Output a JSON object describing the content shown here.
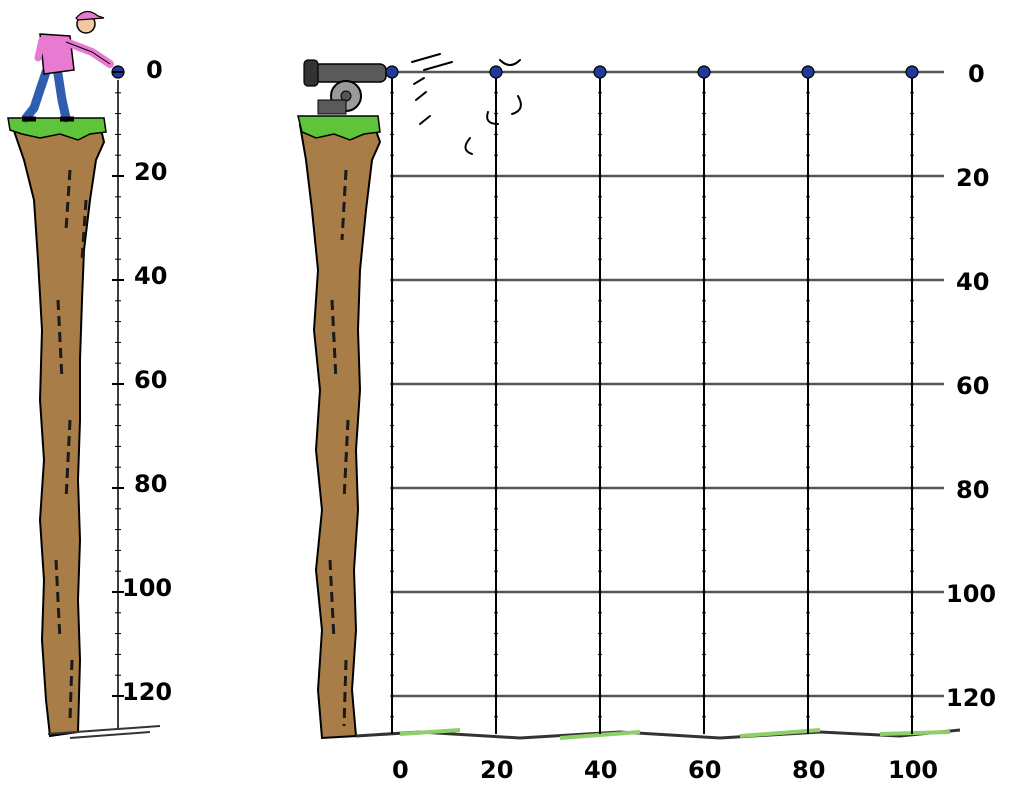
{
  "colors": {
    "cliff_brown": "#a97d47",
    "cliff_outline": "#000000",
    "grass": "#5ec43a",
    "shirt": "#e87ad2",
    "pants": "#2f5db0",
    "ball": "#1f3a9a",
    "grid_horizontal": "#555555",
    "grid_vertical": "#000000",
    "cannon": "#5a5a5a"
  },
  "left_scale": {
    "labels": [
      "0",
      "20",
      "40",
      "60",
      "80",
      "100",
      "120"
    ]
  },
  "right_grid": {
    "y_labels": [
      "0",
      "20",
      "40",
      "60",
      "80",
      "100",
      "120"
    ],
    "x_labels": [
      "0",
      "20",
      "40",
      "60",
      "80",
      "100"
    ]
  },
  "figures": {
    "left": "person-dropping-ball-from-cliff",
    "right": "cannon-firing-ball-horizontally-from-cliff"
  }
}
